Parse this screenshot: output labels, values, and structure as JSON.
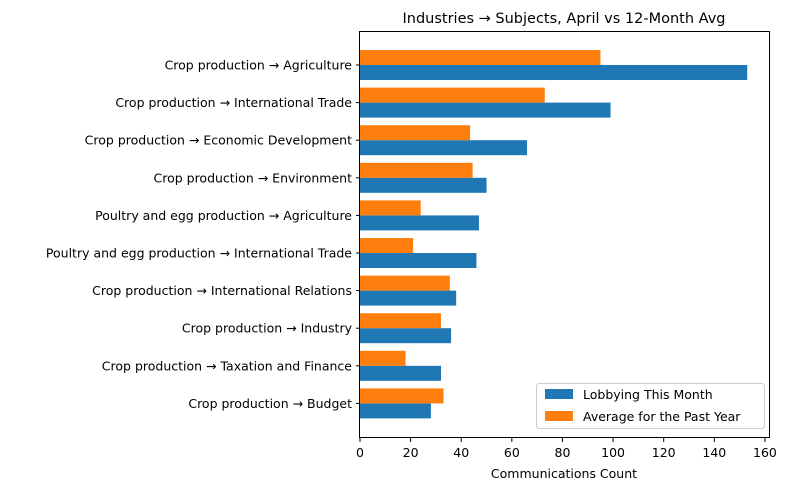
{
  "chart_data": {
    "type": "bar",
    "orientation": "horizontal",
    "title": "Industries → Subjects, April vs 12-Month Avg",
    "xlabel": "Communications Count",
    "ylabel": "",
    "xlim": [
      0,
      162
    ],
    "xticks": [
      0,
      20,
      40,
      60,
      80,
      100,
      120,
      140,
      160
    ],
    "grid": false,
    "legend_position": "lower-right",
    "categories": [
      "Crop production → Agriculture",
      "Crop production → International Trade",
      "Crop production → Economic Development",
      "Crop production → Environment",
      "Poultry and egg production → Agriculture",
      "Poultry and egg production → International Trade",
      "Crop production → International Relations",
      "Crop production → Industry",
      "Crop production → Taxation and Finance",
      "Crop production → Budget"
    ],
    "series": [
      {
        "name": "Lobbying This Month",
        "color": "#1f77b4",
        "values": [
          153,
          99,
          66,
          50,
          47,
          46,
          38,
          36,
          32,
          28
        ]
      },
      {
        "name": "Average for the Past Year",
        "color": "#ff7f0e",
        "values": [
          95,
          73,
          43.5,
          44.5,
          24,
          21,
          35.5,
          32,
          18,
          33
        ]
      }
    ]
  }
}
